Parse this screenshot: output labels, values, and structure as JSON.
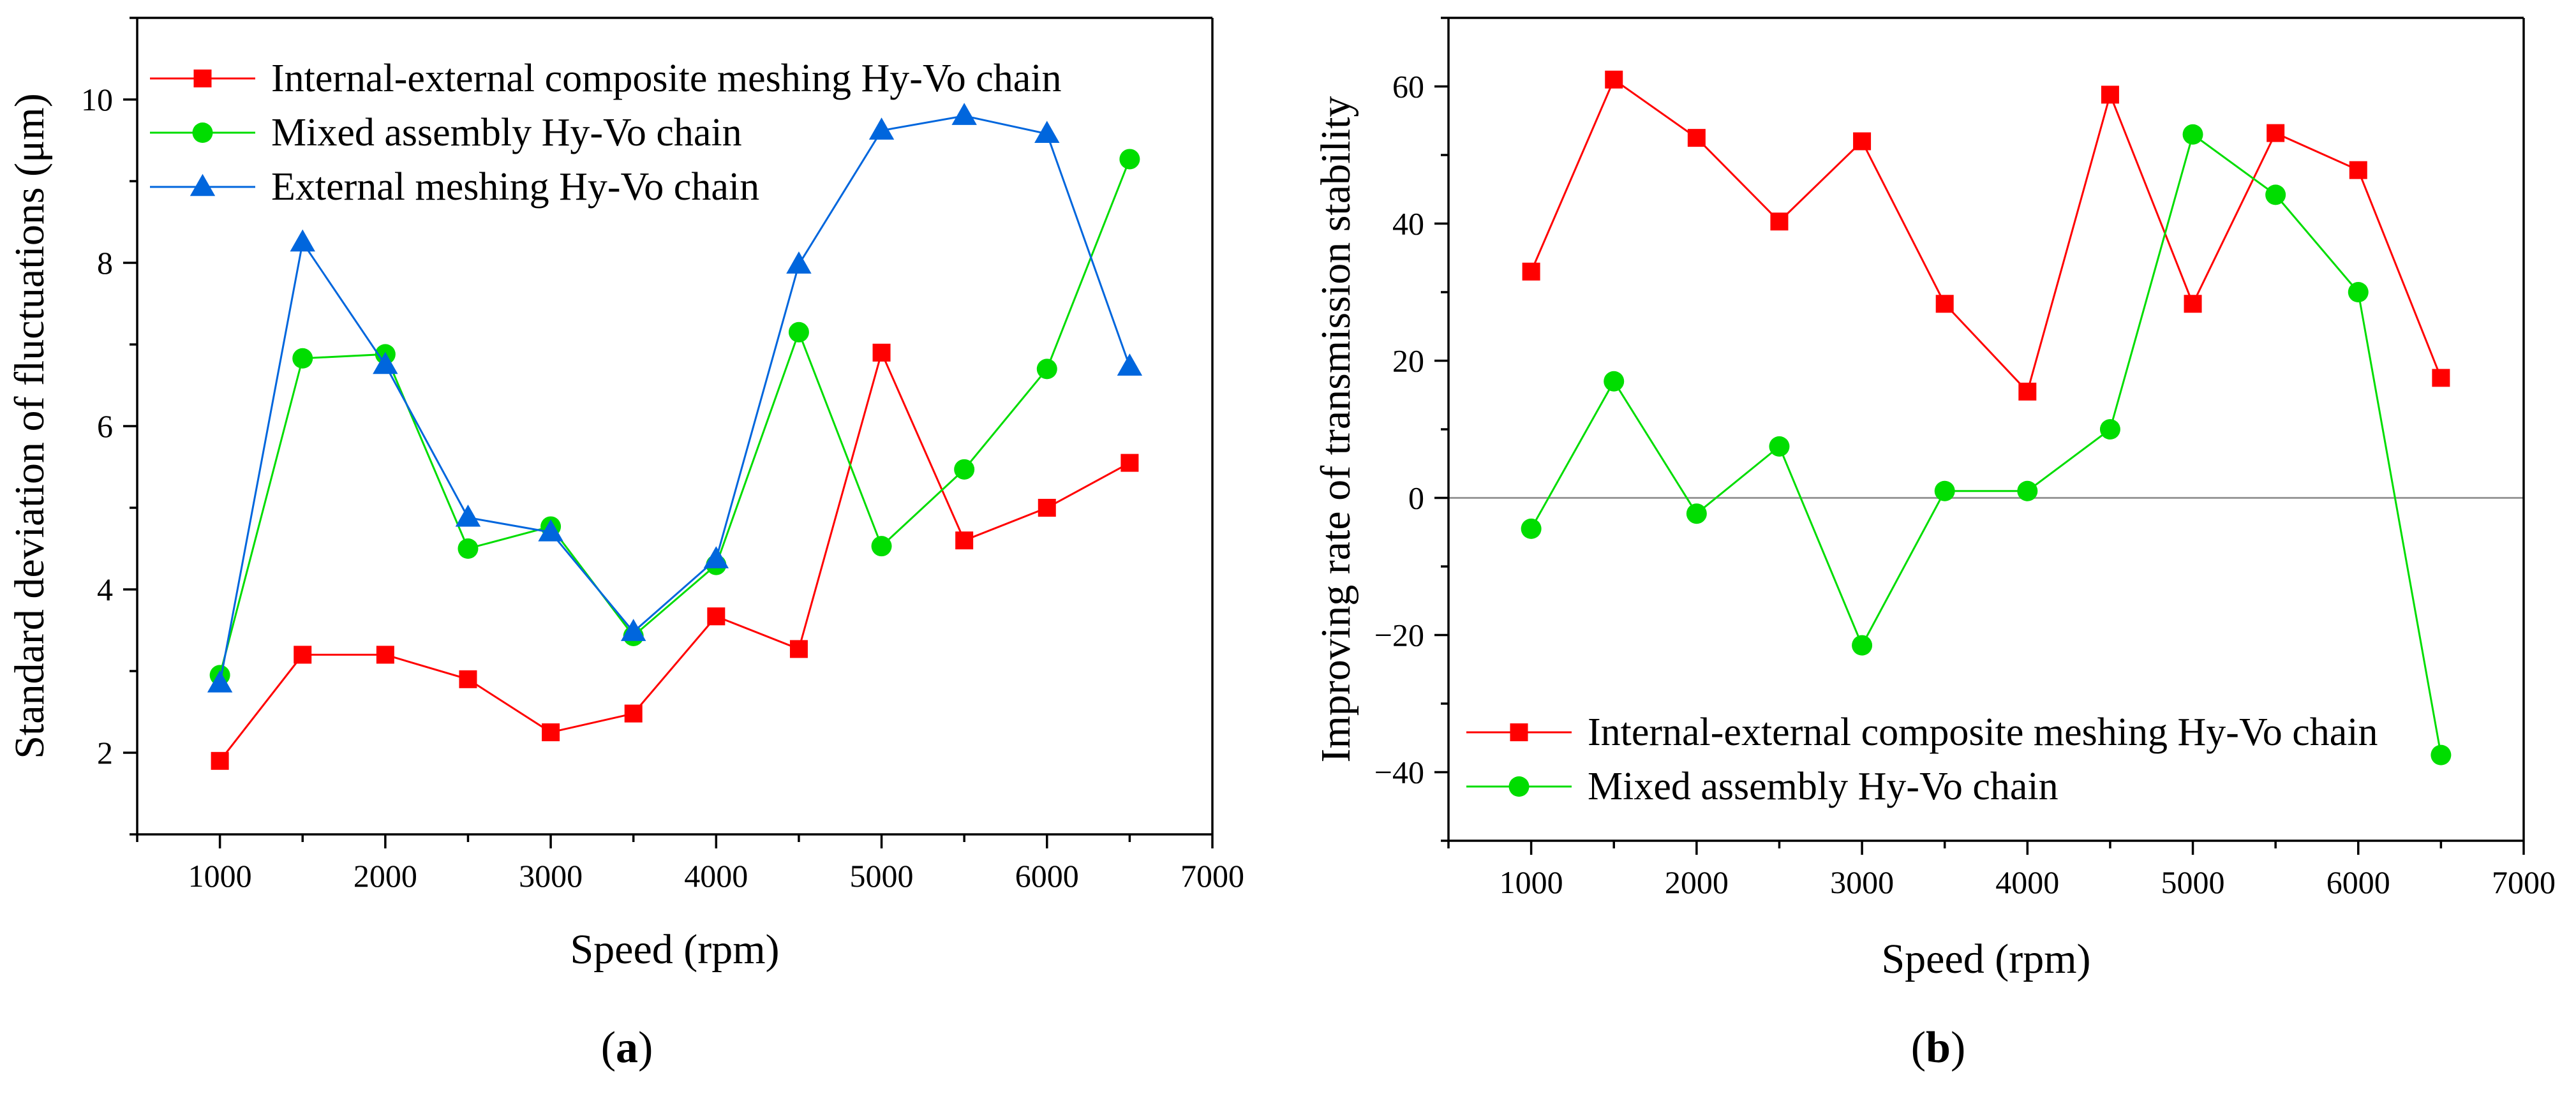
{
  "chart_data": [
    {
      "type": "line",
      "panel_label": "(a)",
      "panel_letter": "a",
      "xlabel": "Speed (rpm)",
      "ylabel": "Standard deviation of fluctuations (μm)",
      "xlim": [
        500,
        7000
      ],
      "ylim": [
        1,
        11
      ],
      "xticks": [
        1000,
        2000,
        3000,
        4000,
        5000,
        6000,
        7000
      ],
      "yticks": [
        2,
        4,
        6,
        8,
        10
      ],
      "legend_position": "top-left",
      "x": [
        1000,
        1500,
        2000,
        2500,
        3000,
        3500,
        4000,
        4500,
        5000,
        5500,
        6000,
        6500
      ],
      "series": [
        {
          "name": "Internal-external composite meshing Hy-Vo chain",
          "color": "#ff0000",
          "marker": "square",
          "values": [
            1.9,
            3.2,
            3.2,
            2.9,
            2.25,
            2.48,
            3.67,
            3.27,
            6.9,
            4.6,
            5.0,
            5.55
          ]
        },
        {
          "name": "Mixed assembly Hy-Vo chain",
          "color": "#00dd00",
          "marker": "circle",
          "values": [
            2.95,
            6.83,
            6.88,
            4.5,
            4.77,
            3.43,
            4.3,
            7.15,
            4.53,
            5.47,
            6.7,
            9.27
          ]
        },
        {
          "name": "External meshing Hy-Vo chain",
          "color": "#0066dd",
          "marker": "triangle",
          "values": [
            2.85,
            8.25,
            6.75,
            4.88,
            4.7,
            3.48,
            4.37,
            7.98,
            9.62,
            9.8,
            9.58,
            6.73
          ]
        }
      ]
    },
    {
      "type": "line",
      "panel_label": "(b)",
      "panel_letter": "b",
      "xlabel": "Speed (rpm)",
      "ylabel": "Improving rate of transmission stability",
      "xlim": [
        500,
        7000
      ],
      "ylim": [
        -50,
        70
      ],
      "xticks": [
        1000,
        2000,
        3000,
        4000,
        5000,
        6000,
        7000
      ],
      "yticks": [
        -40,
        -20,
        0,
        20,
        40,
        60
      ],
      "reference_line": 0,
      "legend_position": "bottom-left",
      "x": [
        1000,
        1500,
        2000,
        2500,
        3000,
        3500,
        4000,
        4500,
        5000,
        5500,
        6000,
        6500
      ],
      "series": [
        {
          "name": "Internal-external composite meshing Hy-Vo chain",
          "color": "#ff0000",
          "marker": "square",
          "values": [
            33,
            61,
            52.5,
            40.3,
            52,
            28.3,
            15.5,
            58.8,
            28.3,
            53.2,
            47.8,
            17.5
          ]
        },
        {
          "name": "Mixed assembly Hy-Vo chain",
          "color": "#00dd00",
          "marker": "circle",
          "values": [
            -4.5,
            17,
            -2.3,
            7.5,
            -21.5,
            1,
            1,
            10,
            53,
            44.2,
            30,
            -37.5
          ]
        }
      ]
    }
  ]
}
